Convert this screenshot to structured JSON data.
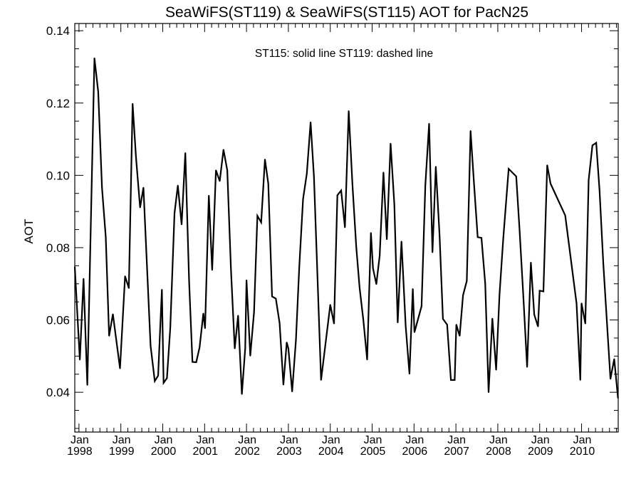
{
  "chart_data": {
    "type": "line",
    "title": "SeaWiFS(ST119) & SeaWiFS(ST115)  AOT for PacN25",
    "annotation": "ST115: solid line   ST119: dashed line",
    "xlabel": "",
    "ylabel": "AOT",
    "xlim": [
      1997.9,
      2010.875
    ],
    "ylim": [
      0.029,
      0.142
    ],
    "yticks": [
      0.04,
      0.06,
      0.08,
      0.1,
      0.12,
      0.14
    ],
    "ytick_labels": [
      "0.04",
      "0.06",
      "0.08",
      "0.10",
      "0.12",
      "0.14"
    ],
    "xticks": [
      1998,
      1999,
      2000,
      2001,
      2002,
      2003,
      2004,
      2005,
      2006,
      2007,
      2008,
      2009,
      2010
    ],
    "xtick_month_label": "Jan",
    "xtick_year_labels": [
      "1998",
      "1999",
      "2000",
      "2001",
      "2002",
      "2003",
      "2004",
      "2005",
      "2006",
      "2007",
      "2008",
      "2009",
      "2010"
    ],
    "grid": false,
    "series": [
      {
        "name": "ST115",
        "style": "solid",
        "color": "#000000",
        "points": [
          [
            1997.9,
            0.0747
          ],
          [
            1998.02,
            0.049
          ],
          [
            1998.11,
            0.0714
          ],
          [
            1998.2,
            0.042
          ],
          [
            1998.37,
            0.1324
          ],
          [
            1998.46,
            0.1231
          ],
          [
            1998.55,
            0.0966
          ],
          [
            1998.64,
            0.0829
          ],
          [
            1998.72,
            0.0556
          ],
          [
            1998.81,
            0.0616
          ],
          [
            1998.98,
            0.0466
          ],
          [
            1999.1,
            0.0721
          ],
          [
            1999.19,
            0.0688
          ],
          [
            1999.28,
            0.1198
          ],
          [
            1999.36,
            0.1051
          ],
          [
            1999.46,
            0.0911
          ],
          [
            1999.54,
            0.0966
          ],
          [
            1999.71,
            0.0529
          ],
          [
            1999.81,
            0.0431
          ],
          [
            1999.89,
            0.0446
          ],
          [
            1999.98,
            0.0684
          ],
          [
            2000.02,
            0.0426
          ],
          [
            2000.1,
            0.0439
          ],
          [
            2000.18,
            0.0579
          ],
          [
            2000.28,
            0.0895
          ],
          [
            2000.36,
            0.0972
          ],
          [
            2000.45,
            0.0864
          ],
          [
            2000.54,
            0.1062
          ],
          [
            2000.63,
            0.0708
          ],
          [
            2000.71,
            0.0484
          ],
          [
            2000.8,
            0.0483
          ],
          [
            2000.88,
            0.0524
          ],
          [
            2000.97,
            0.0618
          ],
          [
            2001.01,
            0.0577
          ],
          [
            2001.1,
            0.0944
          ],
          [
            2001.18,
            0.0738
          ],
          [
            2001.27,
            0.1014
          ],
          [
            2001.36,
            0.0984
          ],
          [
            2001.45,
            0.1071
          ],
          [
            2001.54,
            0.1014
          ],
          [
            2001.63,
            0.0739
          ],
          [
            2001.72,
            0.0521
          ],
          [
            2001.8,
            0.0612
          ],
          [
            2001.89,
            0.0395
          ],
          [
            2001.97,
            0.0521
          ],
          [
            2002.0,
            0.071
          ],
          [
            2002.09,
            0.0501
          ],
          [
            2002.18,
            0.0622
          ],
          [
            2002.26,
            0.0888
          ],
          [
            2002.35,
            0.087
          ],
          [
            2002.44,
            0.1044
          ],
          [
            2002.52,
            0.0977
          ],
          [
            2002.61,
            0.0665
          ],
          [
            2002.7,
            0.0659
          ],
          [
            2002.79,
            0.0591
          ],
          [
            2002.88,
            0.0421
          ],
          [
            2002.96,
            0.0538
          ],
          [
            2003.0,
            0.0521
          ],
          [
            2003.09,
            0.0402
          ],
          [
            2003.18,
            0.0544
          ],
          [
            2003.26,
            0.0747
          ],
          [
            2003.35,
            0.0934
          ],
          [
            2003.44,
            0.1005
          ],
          [
            2003.53,
            0.1147
          ],
          [
            2003.61,
            0.0997
          ],
          [
            2003.7,
            0.07
          ],
          [
            2003.78,
            0.0434
          ],
          [
            2003.88,
            0.0529
          ],
          [
            2004.0,
            0.0642
          ],
          [
            2004.09,
            0.059
          ],
          [
            2004.17,
            0.0945
          ],
          [
            2004.26,
            0.0958
          ],
          [
            2004.35,
            0.0856
          ],
          [
            2004.44,
            0.1178
          ],
          [
            2004.53,
            0.0973
          ],
          [
            2004.62,
            0.0802
          ],
          [
            2004.7,
            0.0689
          ],
          [
            2004.79,
            0.0599
          ],
          [
            2004.88,
            0.049
          ],
          [
            2004.97,
            0.0841
          ],
          [
            2005.02,
            0.0743
          ],
          [
            2005.1,
            0.0699
          ],
          [
            2005.18,
            0.0778
          ],
          [
            2005.27,
            0.1008
          ],
          [
            2005.35,
            0.0823
          ],
          [
            2005.44,
            0.1088
          ],
          [
            2005.53,
            0.0919
          ],
          [
            2005.61,
            0.0593
          ],
          [
            2005.7,
            0.0817
          ],
          [
            2005.8,
            0.0583
          ],
          [
            2005.89,
            0.0451
          ],
          [
            2005.97,
            0.0686
          ],
          [
            2006.01,
            0.0566
          ],
          [
            2006.18,
            0.0638
          ],
          [
            2006.27,
            0.0973
          ],
          [
            2006.36,
            0.1143
          ],
          [
            2006.44,
            0.0787
          ],
          [
            2006.52,
            0.1024
          ],
          [
            2006.61,
            0.0833
          ],
          [
            2006.69,
            0.0603
          ],
          [
            2006.79,
            0.0587
          ],
          [
            2006.88,
            0.0434
          ],
          [
            2006.97,
            0.0434
          ],
          [
            2007.01,
            0.0587
          ],
          [
            2007.09,
            0.0556
          ],
          [
            2007.17,
            0.0668
          ],
          [
            2007.26,
            0.0708
          ],
          [
            2007.35,
            0.1123
          ],
          [
            2007.43,
            0.0981
          ],
          [
            2007.52,
            0.0829
          ],
          [
            2007.61,
            0.0827
          ],
          [
            2007.7,
            0.07
          ],
          [
            2007.78,
            0.04
          ],
          [
            2007.87,
            0.0604
          ],
          [
            2007.96,
            0.0462
          ],
          [
            2008.04,
            0.0669
          ],
          [
            2008.13,
            0.0825
          ],
          [
            2008.26,
            0.1018
          ],
          [
            2008.44,
            0.0997
          ],
          [
            2008.52,
            0.0849
          ],
          [
            2008.61,
            0.0665
          ],
          [
            2008.7,
            0.047
          ],
          [
            2008.79,
            0.0759
          ],
          [
            2008.87,
            0.0615
          ],
          [
            2008.96,
            0.0582
          ],
          [
            2009.0,
            0.0681
          ],
          [
            2009.09,
            0.0679
          ],
          [
            2009.18,
            0.1028
          ],
          [
            2009.26,
            0.0977
          ],
          [
            2009.61,
            0.0889
          ],
          [
            2009.88,
            0.0646
          ],
          [
            2009.97,
            0.0434
          ],
          [
            2010.0,
            0.0646
          ],
          [
            2010.09,
            0.059
          ],
          [
            2010.17,
            0.0987
          ],
          [
            2010.26,
            0.1083
          ],
          [
            2010.35,
            0.109
          ],
          [
            2010.43,
            0.0958
          ],
          [
            2010.52,
            0.0755
          ],
          [
            2010.69,
            0.0437
          ],
          [
            2010.78,
            0.0492
          ],
          [
            2010.87,
            0.0384
          ]
        ]
      }
    ]
  }
}
